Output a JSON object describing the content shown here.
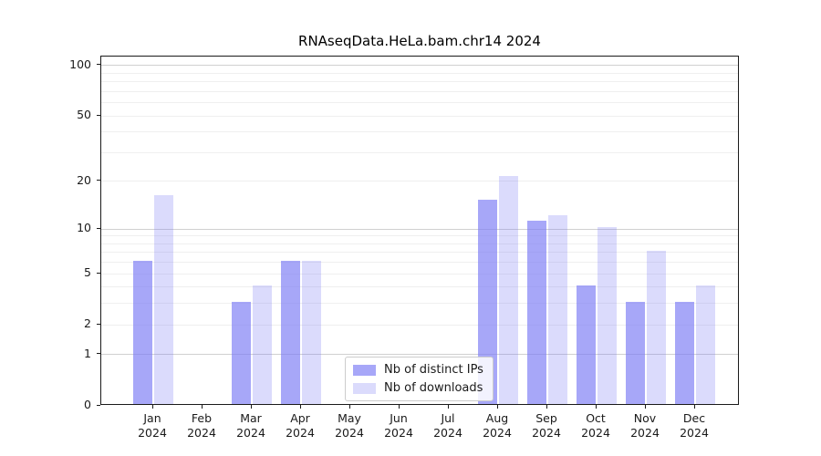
{
  "title": "RNAseqData.HeLa.bam.chr14 2024",
  "chart_data": {
    "type": "bar",
    "title": "RNAseqData.HeLa.bam.chr14 2024",
    "xlabel": "",
    "ylabel": "",
    "months": [
      "Jan",
      "Feb",
      "Mar",
      "Apr",
      "May",
      "Jun",
      "Jul",
      "Aug",
      "Sep",
      "Oct",
      "Nov",
      "Dec"
    ],
    "year": "2024",
    "series": [
      {
        "name": "Nb of distinct IPs",
        "values": [
          6,
          0,
          3,
          6,
          0,
          0,
          0,
          15,
          11,
          4,
          3,
          3
        ],
        "fill": "rgba(125,125,245,0.68)",
        "approx_solid_color": "#a8a8f6"
      },
      {
        "name": "Nb of downloads",
        "values": [
          16,
          0,
          4,
          6,
          0,
          0,
          0,
          21,
          12,
          10,
          7,
          4
        ],
        "fill": "rgba(125,125,245,0.28)",
        "approx_solid_color": "#dcdcfa"
      }
    ],
    "yscale": "log1p",
    "ylim": [
      0,
      113
    ],
    "ytick_values": [
      0,
      1,
      2,
      5,
      10,
      20,
      50,
      100
    ],
    "ytick_labels": [
      "0",
      "1",
      "2",
      "5",
      "10",
      "20",
      "50",
      "100"
    ],
    "major_gridlines": [
      1,
      10,
      100
    ],
    "minor_gridlines": [
      2,
      3,
      4,
      5,
      6,
      7,
      8,
      9,
      20,
      30,
      40,
      50,
      60,
      70,
      80,
      90
    ],
    "grid": true,
    "legend_location": "lower center inside"
  },
  "legend": {
    "items": [
      "Nb of distinct IPs",
      "Nb of downloads"
    ]
  },
  "colors": {
    "bar_base": "#7d7df5",
    "major_grid": "#d0d0d0",
    "minor_grid": "#efefef",
    "spine": "#1a1a1a",
    "text": "#1a1a1a",
    "legend_border": "#cccccc"
  }
}
